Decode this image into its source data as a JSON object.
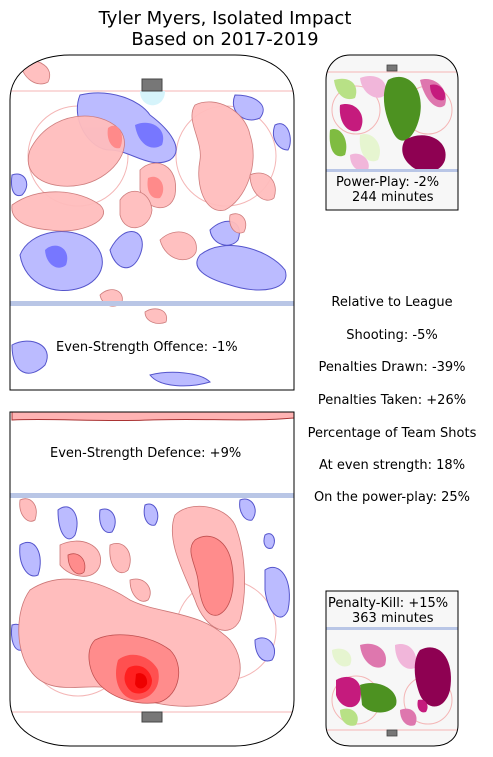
{
  "title_line1": "Tyler Myers, Isolated Impact",
  "title_line2": "Based on 2017-2019",
  "panels": {
    "offence": {
      "label": "Even-Strength Offence: -1%",
      "value_pct": -1
    },
    "defence": {
      "label": "Even-Strength Defence: +9%",
      "value_pct": 9
    },
    "powerplay": {
      "label": "Power-Play: -2%",
      "minutes": "244 minutes",
      "value_pct": -2
    },
    "penaltykill": {
      "label": "Penalty-Kill: +15%",
      "minutes": "363 minutes",
      "value_pct": 15
    }
  },
  "relative": {
    "heading": "Relative to League",
    "shooting": "Shooting: -5%",
    "pen_drawn": "Penalties Drawn: -39%",
    "pen_taken": "Penalties Taken: +26%",
    "team_shots_heading": "Percentage of Team Shots",
    "even_strength": "At even strength: 18%",
    "power_play": "On the power-play: 25%"
  },
  "chart_data": {
    "type": "heatmap",
    "title": "Tyler Myers, Isolated Impact",
    "subtitle": "Based on 2017-2019",
    "values": [
      {
        "situation": "Even-Strength Offence",
        "impact_pct": -1
      },
      {
        "situation": "Even-Strength Defence",
        "impact_pct": 9
      },
      {
        "situation": "Power-Play",
        "impact_pct": -2,
        "minutes": 244
      },
      {
        "situation": "Penalty-Kill",
        "impact_pct": 15,
        "minutes": 363
      }
    ],
    "relative_to_league": {
      "shooting_pct": -5,
      "penalties_drawn_pct": -39,
      "penalties_taken_pct": 26
    },
    "percentage_of_team_shots": {
      "even_strength": 18,
      "power_play": 25
    },
    "colors": {
      "even_positive": "#ff9a9a",
      "even_negative": "#9a9aff",
      "special_positive": "#9e1f63",
      "special_negative": "#4d9221"
    }
  }
}
